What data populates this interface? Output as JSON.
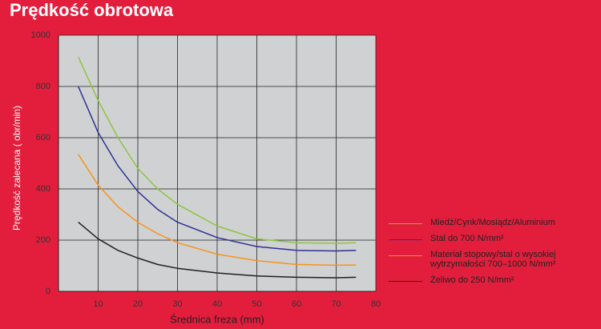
{
  "chart_data": {
    "type": "line",
    "title": "Prędkość obrotowa",
    "y_label": "Prędkość zalecana ( obr/min)",
    "x_label": "Średnica freza (mm)",
    "x": [
      5,
      10,
      15,
      20,
      25,
      30,
      40,
      50,
      60,
      70,
      75
    ],
    "series": [
      {
        "name": "Miedź/Cynk/Mosiądz/Aluminium",
        "color": "#8cc63f",
        "values": [
          915,
          745,
          600,
          480,
          400,
          340,
          255,
          205,
          190,
          188,
          190
        ]
      },
      {
        "name": "Stal do 700 N/mm²",
        "color": "#2e3192",
        "values": [
          800,
          620,
          490,
          390,
          320,
          270,
          210,
          175,
          160,
          158,
          160
        ]
      },
      {
        "name": "Materiał stopowy/stal o wysokiej wytrzymałości 700–1000 N/mm²",
        "color": "#f7941d",
        "values": [
          535,
          415,
          330,
          270,
          225,
          190,
          145,
          120,
          105,
          102,
          103
        ]
      },
      {
        "name": "Żeliwo do 250 N/mm²",
        "color": "#231f20",
        "values": [
          270,
          205,
          160,
          130,
          105,
          90,
          72,
          60,
          55,
          53,
          55
        ]
      }
    ],
    "xlim": [
      0,
      80
    ],
    "xticks": [
      10,
      20,
      30,
      40,
      50,
      60,
      70,
      80
    ],
    "ylim": [
      0,
      1000
    ],
    "yticks": [
      0,
      200,
      400,
      600,
      800,
      1000
    ],
    "grid": true
  }
}
